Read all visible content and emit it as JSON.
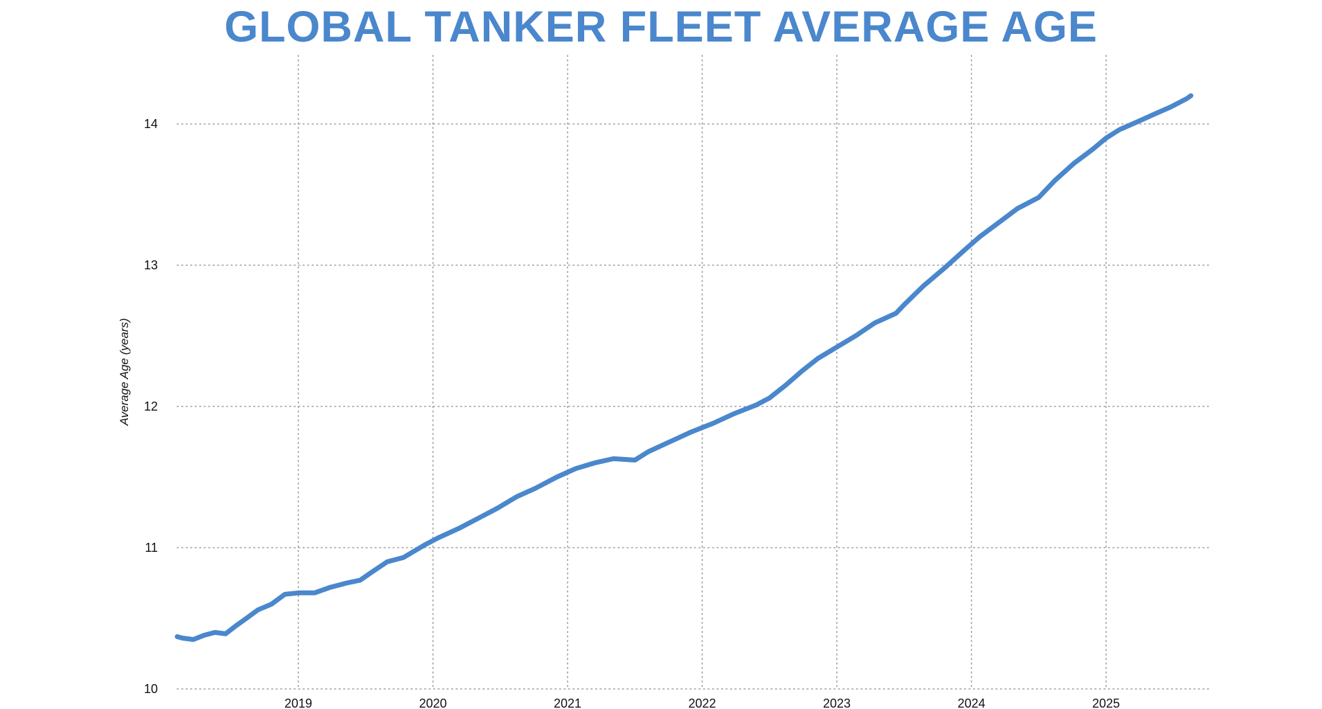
{
  "chart_data": {
    "type": "line",
    "title": "GLOBAL TANKER FLEET AVERAGE AGE",
    "xlabel": "",
    "ylabel": "Average Age (years)",
    "xlim": [
      2018.1,
      2025.7
    ],
    "ylim": [
      10,
      14.4
    ],
    "x_ticks": [
      2019,
      2020,
      2021,
      2022,
      2023,
      2024,
      2025
    ],
    "y_ticks": [
      10,
      11,
      12,
      13,
      14
    ],
    "grid": true,
    "line_color": "#4a87cc",
    "series": [
      {
        "x": [
          2018.1,
          2018.14,
          2018.22,
          2018.3,
          2018.38,
          2018.46,
          2018.54,
          2018.6,
          2018.7,
          2018.8,
          2018.9,
          2019.0,
          2019.12,
          2019.24,
          2019.36,
          2019.46,
          2019.55,
          2019.66,
          2019.78,
          2019.94,
          2020.04,
          2020.2,
          2020.34,
          2020.48,
          2020.62,
          2020.76,
          2020.92,
          2021.06,
          2021.2,
          2021.34,
          2021.5,
          2021.6,
          2021.76,
          2021.92,
          2022.08,
          2022.24,
          2022.4,
          2022.5,
          2022.62,
          2022.74,
          2022.86,
          2023.0,
          2023.14,
          2023.28,
          2023.44,
          2023.5,
          2023.64,
          2023.8,
          2023.94,
          2024.06,
          2024.2,
          2024.34,
          2024.5,
          2024.62,
          2024.76,
          2024.9,
          2025.0,
          2025.1,
          2025.22,
          2025.36,
          2025.48,
          2025.6,
          2025.63
        ],
        "y": [
          10.37,
          10.36,
          10.35,
          10.38,
          10.4,
          10.39,
          10.45,
          10.49,
          10.56,
          10.6,
          10.67,
          10.68,
          10.68,
          10.72,
          10.75,
          10.77,
          10.83,
          10.9,
          10.93,
          11.02,
          11.07,
          11.14,
          11.21,
          11.28,
          11.36,
          11.42,
          11.5,
          11.56,
          11.6,
          11.63,
          11.62,
          11.68,
          11.75,
          11.82,
          11.88,
          11.95,
          12.01,
          12.06,
          12.15,
          12.25,
          12.34,
          12.42,
          12.5,
          12.59,
          12.66,
          12.72,
          12.85,
          12.98,
          13.1,
          13.2,
          13.3,
          13.4,
          13.48,
          13.6,
          13.72,
          13.82,
          13.9,
          13.96,
          14.01,
          14.07,
          14.12,
          14.18,
          14.2
        ]
      }
    ]
  }
}
